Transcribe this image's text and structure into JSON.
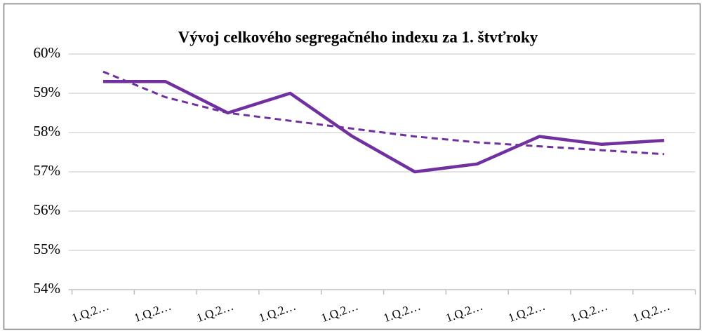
{
  "chart_data": {
    "type": "line",
    "title": "Vývoj celkového segregačného indexu za 1. štvťroky",
    "categories": [
      "1.Q.2…",
      "1.Q.2…",
      "1.Q.2…",
      "1.Q.2…",
      "1.Q.2…",
      "1.Q.2…",
      "1.Q.2…",
      "1.Q.2…",
      "1.Q.2…",
      "1.Q.2…"
    ],
    "values": [
      59.3,
      59.3,
      58.5,
      59.0,
      57.9,
      57.0,
      57.2,
      57.9,
      57.7,
      57.8
    ],
    "color": "#7030a0",
    "trendline": {
      "values": [
        59.55,
        58.9,
        58.5,
        58.3,
        58.1,
        57.9,
        57.75,
        57.65,
        57.55,
        57.45
      ],
      "color": "#7030a0",
      "style": "dashed"
    },
    "ylim": [
      54,
      60
    ],
    "yticks": [
      {
        "value": 54,
        "label": "54%"
      },
      {
        "value": 55,
        "label": "55%"
      },
      {
        "value": 56,
        "label": "56%"
      },
      {
        "value": 57,
        "label": "57%"
      },
      {
        "value": 58,
        "label": "58%"
      },
      {
        "value": 59,
        "label": "59%"
      },
      {
        "value": 60,
        "label": "60%"
      }
    ],
    "grid": true
  }
}
